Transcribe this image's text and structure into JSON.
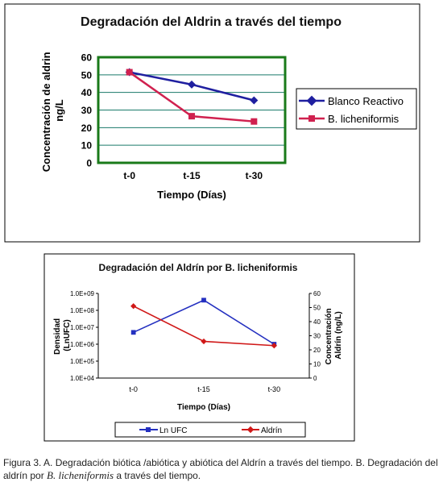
{
  "chart_data": [
    {
      "type": "line",
      "title": "Degradación del Aldrin a través del tiempo",
      "xlabel": "Tiempo (Días)",
      "ylabel": "Concentración de aldrin ng/L",
      "categories": [
        "t-0",
        "t-15",
        "t-30"
      ],
      "ylim": [
        0,
        60
      ],
      "yticks": [
        "0",
        "10",
        "20",
        "30",
        "40",
        "50",
        "60"
      ],
      "grid": true,
      "legend": "right",
      "series": [
        {
          "name": "Blanco Reactivo",
          "values": [
            51.5,
            44.5,
            35.5
          ],
          "color": "#1f1fa0",
          "marker": "diamond"
        },
        {
          "name": "B. licheniformis",
          "values": [
            51.5,
            26.5,
            23.5
          ],
          "color": "#d0214f",
          "marker": "square"
        }
      ],
      "plot_background": "#ffffff",
      "plot_border_color": "#1a7a1a",
      "grid_color": "#1a7a6a"
    },
    {
      "type": "line",
      "title": "Degradación del Aldrín por B. licheniformis",
      "xlabel": "Tiempo (Días)",
      "ylabel_left": "Densidad (LnUFC)",
      "ylabel_right": "Concentración Aldrín (ng/L)",
      "categories": [
        "t-0",
        "t-15",
        "t-30"
      ],
      "left_axis": {
        "scale": "log",
        "ylim": [
          10000,
          1000000000
        ],
        "ticks": [
          "1.0E+04",
          "1.0E+05",
          "1.0E+06",
          "1.0E+07",
          "1.0E+08",
          "1.0E+09"
        ]
      },
      "right_axis": {
        "ylim": [
          0,
          60
        ],
        "ticks": [
          "0",
          "10",
          "20",
          "30",
          "40",
          "50",
          "60"
        ]
      },
      "legend": "bottom",
      "series": [
        {
          "name": "Ln UFC",
          "axis": "left",
          "values": [
            5000000,
            400000000,
            1000000
          ],
          "color": "#2430c0",
          "marker": "square"
        },
        {
          "name": "Aldrín",
          "axis": "right",
          "values": [
            51,
            26,
            23
          ],
          "color": "#d01818",
          "marker": "diamond"
        }
      ]
    }
  ],
  "caption": {
    "part1": "Figura 3. A. Degradación biótica /abiótica y abiótica del Aldrín a través del tiempo. B. Degradación del aldrín por ",
    "species": "B. licheniformis",
    "part2": " a través del tiempo."
  }
}
